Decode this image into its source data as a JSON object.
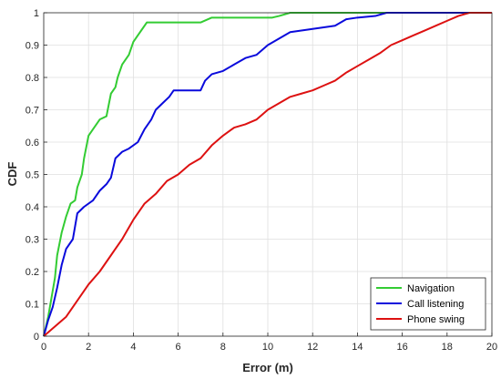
{
  "chart_data": {
    "type": "line",
    "title": "",
    "xlabel": "Error (m)",
    "ylabel": "CDF",
    "xlim": [
      0,
      20
    ],
    "ylim": [
      0,
      1
    ],
    "xticks": [
      "0",
      "2",
      "4",
      "6",
      "8",
      "10",
      "12",
      "14",
      "16",
      "18",
      "20"
    ],
    "yticks": [
      "0",
      "0.1",
      "0.2",
      "0.3",
      "0.4",
      "0.5",
      "0.6",
      "0.7",
      "0.8",
      "0.9",
      "1"
    ],
    "grid": true,
    "legend_position": "bottom-right",
    "series": [
      {
        "name": "Navigation",
        "color": "#33cc33",
        "points": [
          [
            0,
            0
          ],
          [
            0.1,
            0.03
          ],
          [
            0.2,
            0.06
          ],
          [
            0.35,
            0.12
          ],
          [
            0.5,
            0.18
          ],
          [
            0.6,
            0.25
          ],
          [
            0.8,
            0.32
          ],
          [
            1.0,
            0.37
          ],
          [
            1.2,
            0.41
          ],
          [
            1.4,
            0.42
          ],
          [
            1.5,
            0.46
          ],
          [
            1.7,
            0.5
          ],
          [
            1.8,
            0.55
          ],
          [
            2.0,
            0.62
          ],
          [
            2.2,
            0.64
          ],
          [
            2.5,
            0.67
          ],
          [
            2.8,
            0.68
          ],
          [
            3.0,
            0.75
          ],
          [
            3.2,
            0.77
          ],
          [
            3.3,
            0.8
          ],
          [
            3.5,
            0.84
          ],
          [
            3.8,
            0.87
          ],
          [
            4.0,
            0.91
          ],
          [
            4.2,
            0.93
          ],
          [
            4.4,
            0.95
          ],
          [
            4.6,
            0.97
          ],
          [
            5.0,
            0.97
          ],
          [
            6.5,
            0.97
          ],
          [
            7.0,
            0.97
          ],
          [
            7.5,
            0.985
          ],
          [
            9.0,
            0.985
          ],
          [
            10.2,
            0.985
          ],
          [
            10.5,
            0.99
          ],
          [
            11.0,
            1.0
          ],
          [
            20,
            1.0
          ]
        ]
      },
      {
        "name": "Call listening",
        "color": "#0a0adc",
        "points": [
          [
            0,
            0
          ],
          [
            0.2,
            0.05
          ],
          [
            0.4,
            0.09
          ],
          [
            0.6,
            0.15
          ],
          [
            0.8,
            0.22
          ],
          [
            1.0,
            0.27
          ],
          [
            1.3,
            0.3
          ],
          [
            1.5,
            0.38
          ],
          [
            1.8,
            0.4
          ],
          [
            2.2,
            0.42
          ],
          [
            2.5,
            0.45
          ],
          [
            2.8,
            0.47
          ],
          [
            3.0,
            0.49
          ],
          [
            3.2,
            0.55
          ],
          [
            3.5,
            0.57
          ],
          [
            3.8,
            0.58
          ],
          [
            4.2,
            0.6
          ],
          [
            4.5,
            0.64
          ],
          [
            4.8,
            0.67
          ],
          [
            5.0,
            0.7
          ],
          [
            5.3,
            0.72
          ],
          [
            5.6,
            0.74
          ],
          [
            5.8,
            0.76
          ],
          [
            6.5,
            0.76
          ],
          [
            7.0,
            0.76
          ],
          [
            7.2,
            0.79
          ],
          [
            7.5,
            0.81
          ],
          [
            8.0,
            0.82
          ],
          [
            8.5,
            0.84
          ],
          [
            9.0,
            0.86
          ],
          [
            9.5,
            0.87
          ],
          [
            10.0,
            0.9
          ],
          [
            10.5,
            0.92
          ],
          [
            11.0,
            0.94
          ],
          [
            11.5,
            0.945
          ],
          [
            12.0,
            0.95
          ],
          [
            12.5,
            0.955
          ],
          [
            13.0,
            0.96
          ],
          [
            13.5,
            0.98
          ],
          [
            14.0,
            0.985
          ],
          [
            14.8,
            0.99
          ],
          [
            15.3,
            1.0
          ],
          [
            20,
            1.0
          ]
        ]
      },
      {
        "name": "Phone swing",
        "color": "#dd1111",
        "points": [
          [
            0,
            0
          ],
          [
            0.5,
            0.03
          ],
          [
            1.0,
            0.06
          ],
          [
            1.5,
            0.11
          ],
          [
            2.0,
            0.16
          ],
          [
            2.5,
            0.2
          ],
          [
            3.0,
            0.25
          ],
          [
            3.5,
            0.3
          ],
          [
            4.0,
            0.36
          ],
          [
            4.5,
            0.41
          ],
          [
            5.0,
            0.44
          ],
          [
            5.5,
            0.48
          ],
          [
            6.0,
            0.5
          ],
          [
            6.5,
            0.53
          ],
          [
            7.0,
            0.55
          ],
          [
            7.5,
            0.59
          ],
          [
            8.0,
            0.62
          ],
          [
            8.5,
            0.645
          ],
          [
            9.0,
            0.655
          ],
          [
            9.5,
            0.67
          ],
          [
            10.0,
            0.7
          ],
          [
            10.5,
            0.72
          ],
          [
            11.0,
            0.74
          ],
          [
            11.5,
            0.75
          ],
          [
            12.0,
            0.76
          ],
          [
            12.5,
            0.775
          ],
          [
            13.0,
            0.79
          ],
          [
            13.5,
            0.815
          ],
          [
            14.0,
            0.835
          ],
          [
            14.5,
            0.855
          ],
          [
            15.0,
            0.875
          ],
          [
            15.5,
            0.9
          ],
          [
            16.0,
            0.915
          ],
          [
            16.5,
            0.93
          ],
          [
            17.0,
            0.945
          ],
          [
            17.5,
            0.96
          ],
          [
            18.0,
            0.975
          ],
          [
            18.5,
            0.99
          ],
          [
            19.0,
            1.0
          ],
          [
            20,
            1.0
          ]
        ]
      }
    ]
  }
}
